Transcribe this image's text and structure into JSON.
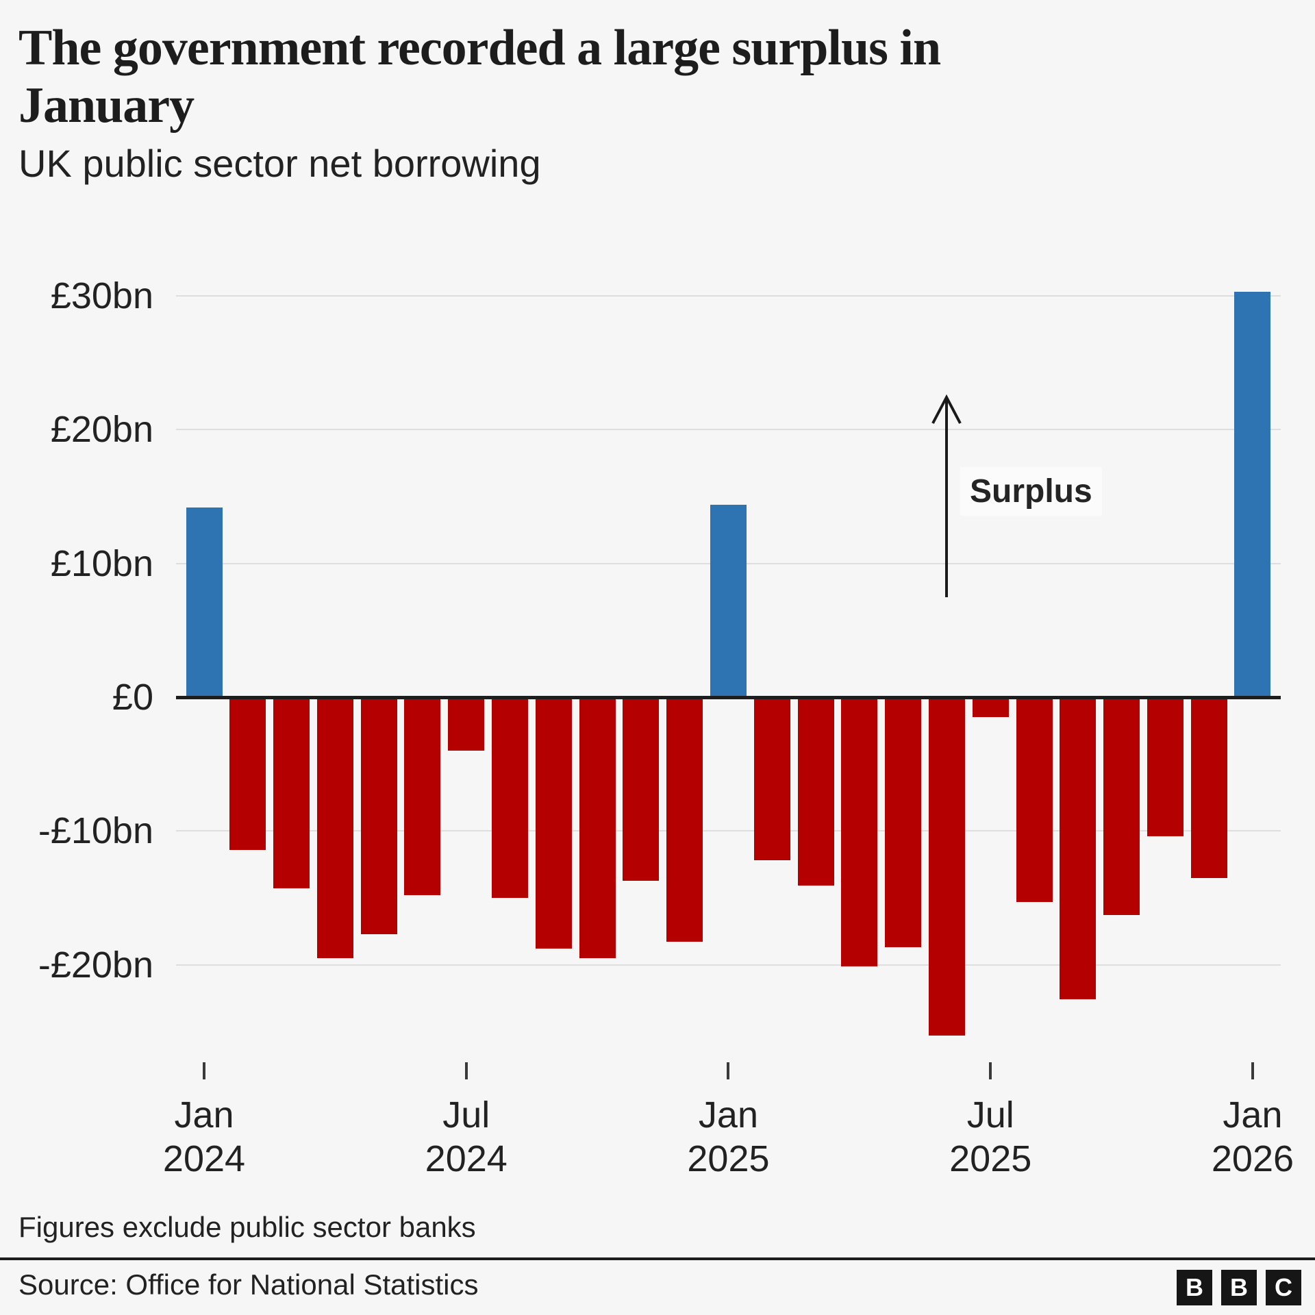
{
  "header": {
    "title": "The government recorded a large surplus in January",
    "title_lines": [
      "The government recorded a large surplus in",
      "January"
    ],
    "subtitle": "UK public sector net borrowing"
  },
  "chart_data": {
    "type": "bar",
    "title": "The government recorded a large surplus in January",
    "subtitle": "UK public sector net borrowing",
    "unit": "£bn",
    "grid": "horizontal",
    "ylim": [
      -27,
      32
    ],
    "categories": [
      "Jan 2024",
      "Feb 2024",
      "Mar 2024",
      "Apr 2024",
      "May 2024",
      "Jun 2024",
      "Jul 2024",
      "Aug 2024",
      "Sep 2024",
      "Oct 2024",
      "Nov 2024",
      "Dec 2024",
      "Jan 2025",
      "Feb 2025",
      "Mar 2025",
      "Apr 2025",
      "May 2025",
      "Jun 2025",
      "Jul 2025",
      "Aug 2025",
      "Sep 2025",
      "Oct 2025",
      "Nov 2025",
      "Dec 2025",
      "Jan 2026"
    ],
    "values": [
      14.2,
      -11.4,
      -14.3,
      -19.5,
      -17.7,
      -14.8,
      -4.0,
      -15.0,
      -18.8,
      -19.5,
      -13.7,
      -18.3,
      14.4,
      -12.2,
      -14.1,
      -20.1,
      -18.7,
      -25.3,
      -1.5,
      -15.3,
      -22.6,
      -16.3,
      -10.4,
      -13.5,
      30.3
    ],
    "colors": {
      "surplus": "#2e74b3",
      "borrowing": "#b50000"
    },
    "y_ticks": [
      {
        "label": "£30bn",
        "value": 30
      },
      {
        "label": "£20bn",
        "value": 20
      },
      {
        "label": "£10bn",
        "value": 10
      },
      {
        "label": "£0",
        "value": 0
      },
      {
        "label": "-£10bn",
        "value": -10
      },
      {
        "label": "-£20bn",
        "value": -20
      }
    ],
    "x_ticks": [
      {
        "index": 0,
        "line1": "Jan",
        "line2": "2024"
      },
      {
        "index": 6,
        "line1": "Jul",
        "line2": "2024"
      },
      {
        "index": 12,
        "line1": "Jan",
        "line2": "2025"
      },
      {
        "index": 18,
        "line1": "Jul",
        "line2": "2025"
      },
      {
        "index": 24,
        "line1": "Jan",
        "line2": "2026"
      }
    ],
    "annotation": {
      "label": "Surplus",
      "direction": "up"
    }
  },
  "footer": {
    "note": "Figures exclude public sector banks",
    "source": "Source: Office for National Statistics",
    "logo_letters": [
      "B",
      "B",
      "C"
    ]
  }
}
